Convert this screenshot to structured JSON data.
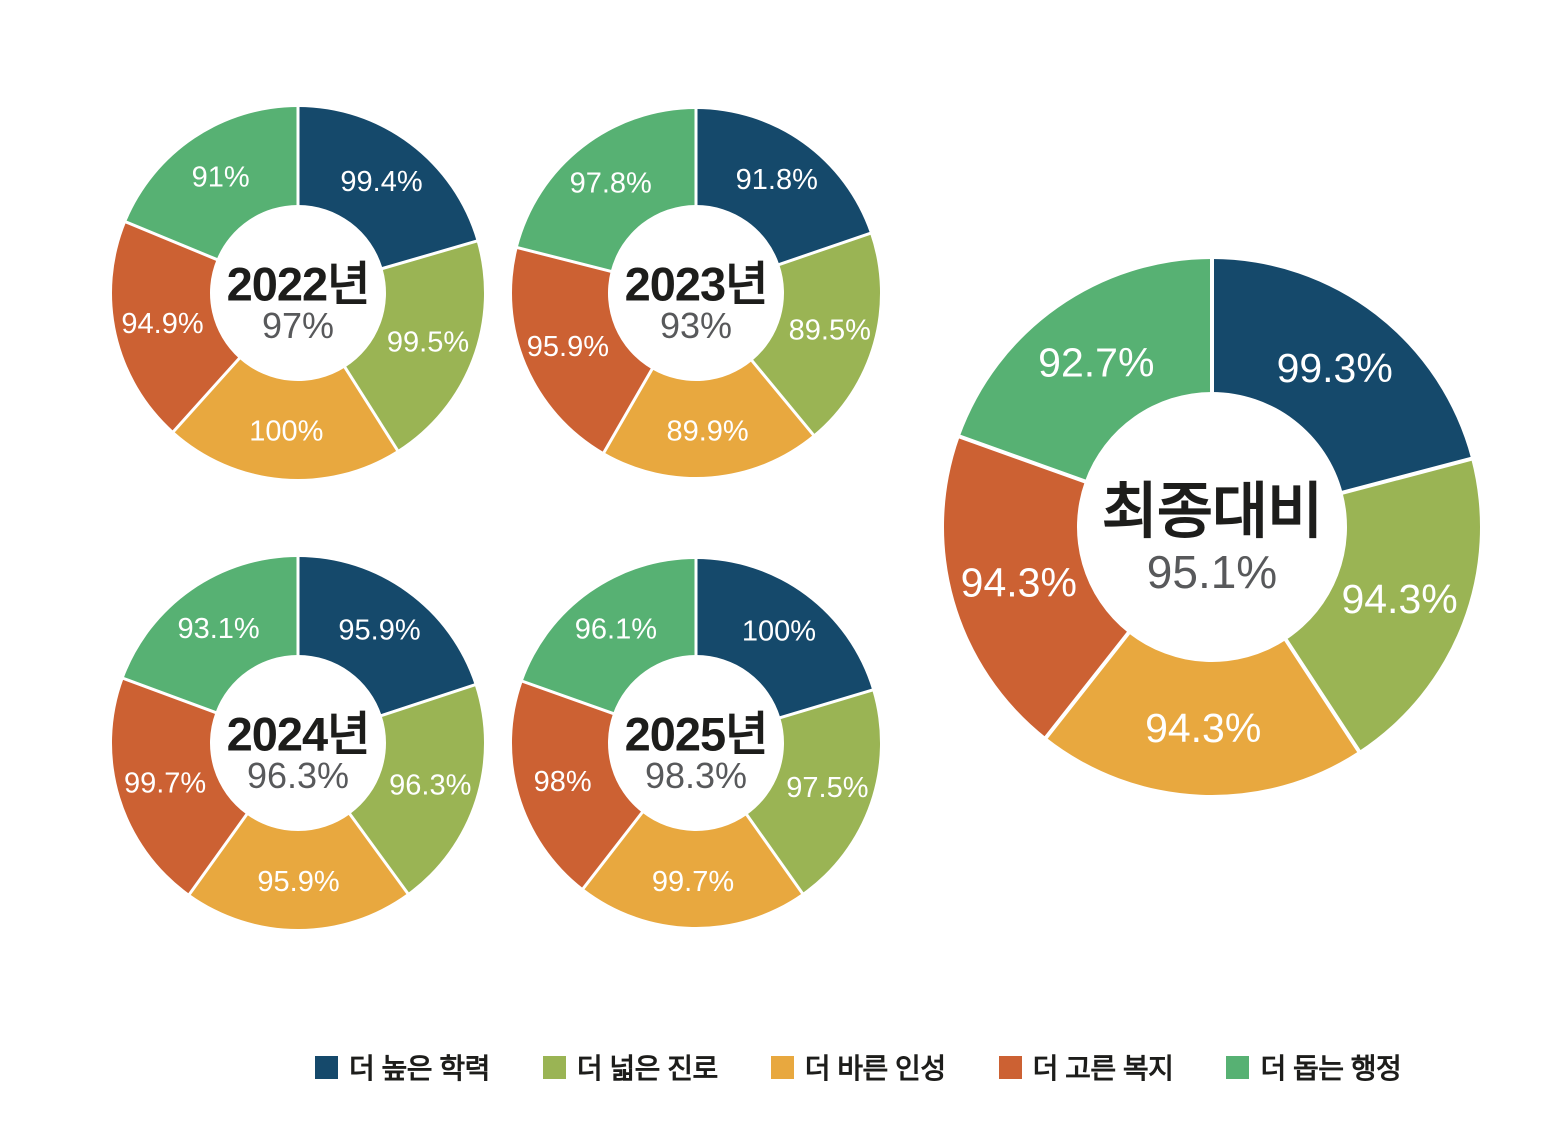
{
  "page": {
    "background": "#ffffff"
  },
  "palette": {
    "blue": "#15496b",
    "olive_green": "#9ab454",
    "amber": "#e8a83f",
    "orange_red": "#cc6133",
    "green": "#57b173",
    "center_title": "#1d1d1b",
    "center_subtitle": "#58595b",
    "slice_label": "#ffffff",
    "separator": "#ffffff"
  },
  "categories": [
    {
      "label": "더 높은 학력",
      "color": "#15496b"
    },
    {
      "label": "더 넓은 진로",
      "color": "#9ab454"
    },
    {
      "label": "더 바른 인성",
      "color": "#e8a83f"
    },
    {
      "label": "더 고른 복지",
      "color": "#cc6133"
    },
    {
      "label": "더 돕는 행정",
      "color": "#57b173"
    }
  ],
  "chart_data": [
    {
      "type": "pie",
      "subtype": "donut",
      "title": "2022년",
      "center_value": "97%",
      "categories": [
        "더 높은 학력",
        "더 넓은 진로",
        "더 바른 인성",
        "더 고른 복지",
        "더 돕는 행정"
      ],
      "values": [
        99.4,
        99.5,
        100,
        94.9,
        91
      ],
      "value_labels": [
        "99.4%",
        "99.5%",
        "100%",
        "94.9%",
        "91%"
      ],
      "start_angle_deg": 0,
      "direction": "clockwise",
      "legend_position": "bottom"
    },
    {
      "type": "pie",
      "subtype": "donut",
      "title": "2023년",
      "center_value": "93%",
      "categories": [
        "더 높은 학력",
        "더 넓은 진로",
        "더 바른 인성",
        "더 고른 복지",
        "더 돕는 행정"
      ],
      "values": [
        91.8,
        89.5,
        89.9,
        95.9,
        97.8
      ],
      "value_labels": [
        "91.8%",
        "89.5%",
        "89.9%",
        "95.9%",
        "97.8%"
      ],
      "start_angle_deg": 0,
      "direction": "clockwise",
      "legend_position": "bottom"
    },
    {
      "type": "pie",
      "subtype": "donut",
      "title": "2024년",
      "center_value": "96.3%",
      "categories": [
        "더 높은 학력",
        "더 넓은 진로",
        "더 바른 인성",
        "더 고른 복지",
        "더 돕는 행정"
      ],
      "values": [
        95.9,
        96.3,
        95.9,
        99.7,
        93.1
      ],
      "value_labels": [
        "95.9%",
        "96.3%",
        "95.9%",
        "99.7%",
        "93.1%"
      ],
      "start_angle_deg": 0,
      "direction": "clockwise",
      "legend_position": "bottom"
    },
    {
      "type": "pie",
      "subtype": "donut",
      "title": "2025년",
      "center_value": "98.3%",
      "categories": [
        "더 높은 학력",
        "더 넓은 진로",
        "더 바른 인성",
        "더 고른 복지",
        "더 돕는 행정"
      ],
      "values": [
        100,
        97.5,
        99.7,
        98,
        96.1
      ],
      "value_labels": [
        "100%",
        "97.5%",
        "99.7%",
        "98%",
        "96.1%"
      ],
      "start_angle_deg": 0,
      "direction": "clockwise",
      "legend_position": "bottom"
    },
    {
      "type": "pie",
      "subtype": "donut",
      "title": "최종대비",
      "center_value": "95.1%",
      "categories": [
        "더 높은 학력",
        "더 넓은 진로",
        "더 바른 인성",
        "더 고른 복지",
        "더 돕는 행정"
      ],
      "values": [
        99.3,
        94.3,
        94.3,
        94.3,
        92.7
      ],
      "value_labels": [
        "99.3%",
        "94.3%",
        "94.3%",
        "94.3%",
        "92.7%"
      ],
      "start_angle_deg": 0,
      "direction": "clockwise",
      "legend_position": "bottom"
    }
  ],
  "legend": {
    "items": [
      {
        "label": "더 높은 학력",
        "color": "#15496b"
      },
      {
        "label": "더 넓은 진로",
        "color": "#9ab454"
      },
      {
        "label": "더 바른 인성",
        "color": "#e8a83f"
      },
      {
        "label": "더 고른 복지",
        "color": "#cc6133"
      },
      {
        "label": "더 돕는 행정",
        "color": "#57b173"
      }
    ]
  }
}
